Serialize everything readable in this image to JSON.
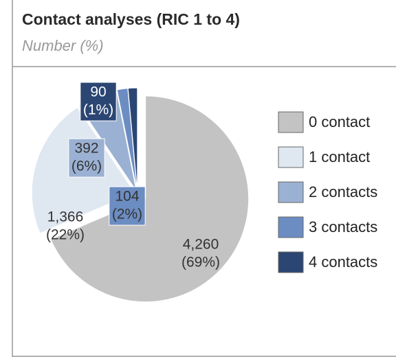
{
  "chart_data": {
    "type": "pie",
    "title": "Contact analyses (RIC 1 to 4)",
    "subtitle": "Number (%)",
    "categories": [
      "0 contact",
      "1 contact",
      "2 contacts",
      "3 contacts",
      "4 contacts"
    ],
    "values": [
      4260,
      1366,
      392,
      104,
      90
    ],
    "value_labels": [
      "4,260",
      "1,366",
      "392",
      "104",
      "90"
    ],
    "percent_labels": [
      "(69%)",
      "(22%)",
      "(6%)",
      "(2%)",
      "(1%)"
    ],
    "colors": [
      "#c3c3c3",
      "#dfe7f1",
      "#9bb1d3",
      "#6c8dc2",
      "#2c4673"
    ],
    "legend": "right"
  }
}
